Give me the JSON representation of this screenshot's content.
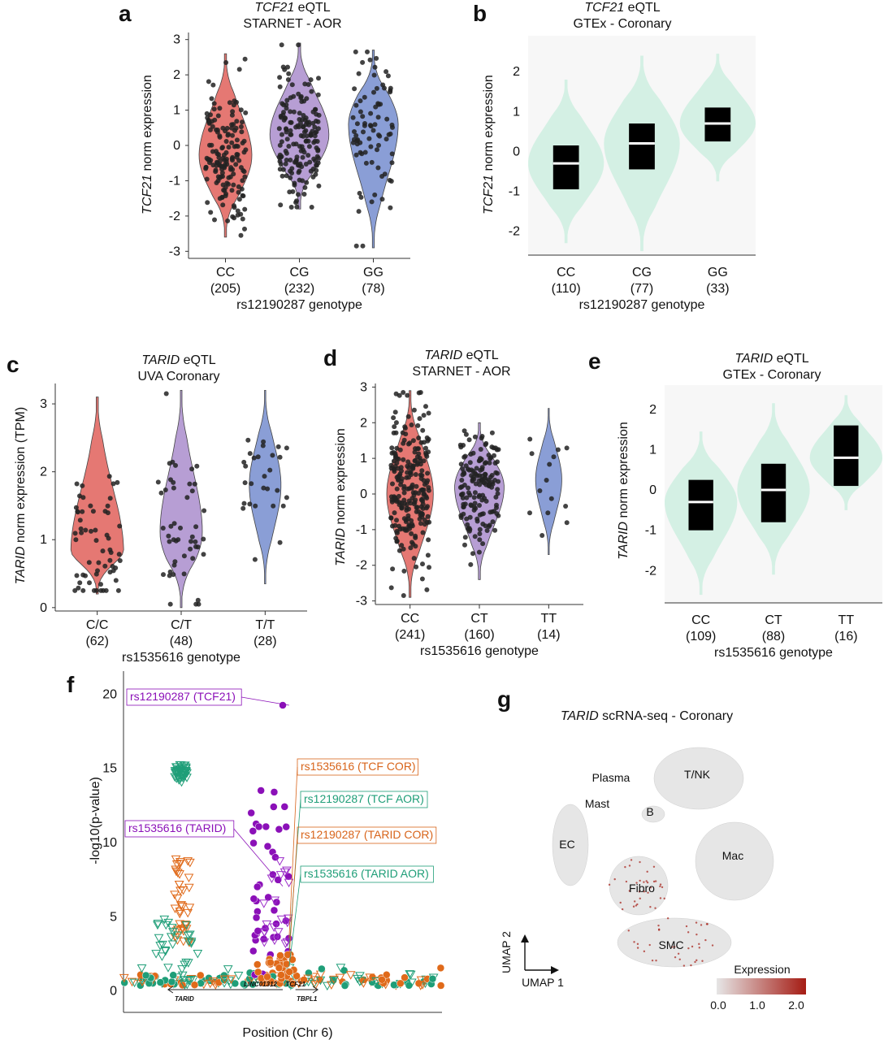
{
  "chart_data": [
    {
      "panel": "a",
      "type": "violin",
      "title_gene": "TCF21",
      "title_rest": " eQTL",
      "subtitle": "STARNET - AOR",
      "ylabel_gene": "TCF21",
      "ylabel_rest": " norm expression",
      "xlabel": "rs12190287 genotype",
      "ylim": [
        -3.2,
        3.2
      ],
      "yticks": [
        -3,
        -2,
        -1,
        0,
        1,
        2,
        3
      ],
      "groups": [
        {
          "label": "CC",
          "n": "(205)",
          "color": "#e57873",
          "min": -2.6,
          "max": 2.6,
          "peak": -0.3,
          "width": 0.85
        },
        {
          "label": "CG",
          "n": "(232)",
          "color": "#b79ed4",
          "min": -1.8,
          "max": 2.9,
          "peak": 0.3,
          "width": 0.95
        },
        {
          "label": "GG",
          "n": "(78)",
          "color": "#8a9ed6",
          "min": -2.9,
          "max": 2.7,
          "peak": 0.6,
          "width": 0.8
        }
      ]
    },
    {
      "panel": "b",
      "type": "violin-box",
      "title_gene": "TCF21",
      "title_rest": " eQTL",
      "subtitle": "GTEx - Coronary",
      "ylabel_gene": "TCF21",
      "ylabel_rest": " norm expression",
      "xlabel": "rs12190287 genotype",
      "ylim": [
        -2.6,
        2.9
      ],
      "yticks": [
        -2,
        -1,
        0,
        1,
        2
      ],
      "groups": [
        {
          "label": "CC",
          "n": "(110)",
          "min": -2.3,
          "max": 1.8,
          "q1": -0.95,
          "median": -0.3,
          "q3": 0.15
        },
        {
          "label": "CG",
          "n": "(77)",
          "min": -2.5,
          "max": 2.4,
          "q1": -0.45,
          "median": 0.2,
          "q3": 0.7
        },
        {
          "label": "GG",
          "n": "(33)",
          "min": -0.75,
          "max": 2.45,
          "q1": 0.25,
          "median": 0.7,
          "q3": 1.1
        }
      ]
    },
    {
      "panel": "c",
      "type": "violin",
      "title_gene": "TARID",
      "title_rest": " eQTL",
      "subtitle": "UVA Coronary",
      "ylabel_gene": "TARID",
      "ylabel_rest": " norm expression (TPM)",
      "xlabel": "rs1535616 genotype",
      "ylim": [
        -0.05,
        3.3
      ],
      "yticks": [
        0,
        1,
        2,
        3
      ],
      "groups": [
        {
          "label": "C/C",
          "n": "(62)",
          "color": "#e57873",
          "min": 0.2,
          "max": 3.1,
          "peak": 0.8,
          "width": 0.75
        },
        {
          "label": "C/T",
          "n": "(48)",
          "color": "#b79ed4",
          "min": 0.0,
          "max": 3.2,
          "peak": 1.1,
          "width": 0.6
        },
        {
          "label": "T/T",
          "n": "(28)",
          "color": "#8a9ed6",
          "min": 0.35,
          "max": 3.2,
          "peak": 1.8,
          "width": 0.45
        }
      ]
    },
    {
      "panel": "d",
      "type": "violin",
      "title_gene": "TARID",
      "title_rest": " eQTL",
      "subtitle": "STARNET - AOR",
      "ylabel_gene": "TARID",
      "ylabel_rest": " norm expression",
      "xlabel": "rs1535616 genotype",
      "ylim": [
        -3.1,
        3.1
      ],
      "yticks": [
        -3,
        -2,
        -1,
        0,
        1,
        2,
        3
      ],
      "groups": [
        {
          "label": "CC",
          "n": "(241)",
          "color": "#e57873",
          "min": -2.9,
          "max": 2.9,
          "peak": 0.0,
          "width": 0.8
        },
        {
          "label": "CT",
          "n": "(160)",
          "color": "#b79ed4",
          "min": -2.4,
          "max": 2.0,
          "peak": 0.2,
          "width": 0.85
        },
        {
          "label": "TT",
          "n": "(14)",
          "color": "#8a9ed6",
          "min": -1.7,
          "max": 2.4,
          "peak": 0.4,
          "width": 0.45
        }
      ]
    },
    {
      "panel": "e",
      "type": "violin-box",
      "title_gene": "TARID",
      "title_rest": " eQTL",
      "subtitle": "GTEx - Coronary",
      "ylabel_gene": "TARID",
      "ylabel_rest": " norm expression",
      "xlabel": "rs1535616 genotype",
      "ylim": [
        -2.8,
        2.6
      ],
      "yticks": [
        -2,
        -1,
        0,
        1,
        2
      ],
      "groups": [
        {
          "label": "CC",
          "n": "(109)",
          "min": -2.6,
          "max": 1.45,
          "q1": -1.0,
          "median": -0.3,
          "q3": 0.25
        },
        {
          "label": "CT",
          "n": "(88)",
          "min": -2.1,
          "max": 2.15,
          "q1": -0.8,
          "median": 0.0,
          "q3": 0.65
        },
        {
          "label": "TT",
          "n": "(16)",
          "min": -0.5,
          "max": 2.35,
          "q1": 0.1,
          "median": 0.8,
          "q3": 1.6
        }
      ]
    },
    {
      "panel": "f",
      "type": "scatter",
      "ylabel": "-log10(p-value)",
      "xlabel": "Position (Chr 6)",
      "ylim": [
        -1.5,
        21.5
      ],
      "yticks": [
        0,
        5,
        10,
        15,
        20
      ],
      "genes": [
        {
          "name": "TARID",
          "x1": 0.14,
          "x2": 0.5,
          "dir": "left"
        },
        {
          "name": "TBPL1",
          "x1": 0.54,
          "x2": 0.61,
          "dir": "right"
        },
        {
          "name": "LINC01312",
          "x": 0.43
        },
        {
          "name": "TCF21",
          "x": 0.54
        }
      ],
      "series": [
        {
          "name": "TCF21",
          "color": "#8b10b8",
          "marker": "circle-filled"
        },
        {
          "name": "TCF COR",
          "color": "#e06a1a",
          "marker": "triangle-open"
        },
        {
          "name": "TCF AOR",
          "color": "#1f9e78",
          "marker": "triangle-open"
        },
        {
          "name": "TARID",
          "color": "#9c2fc9",
          "marker": "triangle-open"
        },
        {
          "name": "TARID COR",
          "color": "#e06a1a",
          "marker": "circle-filled"
        },
        {
          "name": "TARID AOR",
          "color": "#1f9e78",
          "marker": "circle-filled"
        }
      ],
      "labels": [
        {
          "text": "rs12190287 (TCF21)",
          "color": "#8b10b8",
          "x": 0.52,
          "y": 19.2
        },
        {
          "text": "rs1535616 (TCF COR)",
          "color": "#d8641a",
          "x": 0.52,
          "y": 3.5
        },
        {
          "text": "rs12190287 (TCF AOR)",
          "color": "#1f9e78",
          "x": 0.52,
          "y": 2.8
        },
        {
          "text": "rs1535616 (TARID)",
          "color": "#8b10b8",
          "x": 0.5,
          "y": 7.0
        },
        {
          "text": "rs12190287 (TARID COR)",
          "color": "#d8641a",
          "x": 0.52,
          "y": 2.2
        },
        {
          "text": "rs1535616 (TARID AOR)",
          "color": "#1f9e78",
          "x": 0.52,
          "y": 1.6
        }
      ]
    },
    {
      "panel": "g",
      "type": "umap",
      "title_gene": "TARID",
      "title_rest": " scRNA-seq - Coronary",
      "xlabel": "UMAP 1",
      "ylabel": "UMAP 2",
      "clusters": [
        "T/NK",
        "Plasma",
        "Mast",
        "B",
        "EC",
        "Mac",
        "Fibro",
        "SMC"
      ],
      "legend_title": "Expression",
      "legend_ticks": [
        "0.0",
        "1.0",
        "2.0"
      ],
      "color_low": "#e6e6e6",
      "color_high": "#a51c14"
    }
  ]
}
